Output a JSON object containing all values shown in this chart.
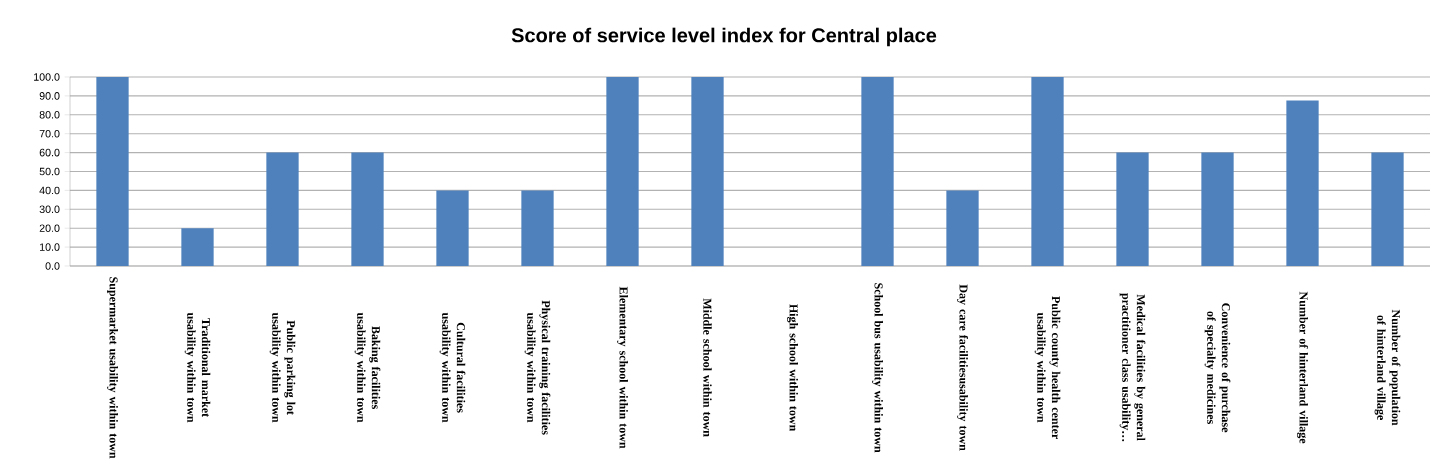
{
  "chart_data": {
    "type": "bar",
    "title": "Score of service level index for Central place",
    "categories": [
      "Supermarket usability within town",
      "Traditional market usability within town",
      "Public parking lot usability within town",
      "Baking facilities usability within town",
      "Cultural facilities usability within town",
      "Physical training facilities usability within town",
      "Elementary school within town",
      "Middle school within town",
      "High school within town",
      "School bus usability within town",
      "Day care facilitiesusability town",
      "Public county health center usability within town",
      "Medical facilities by general practitioner class usability…",
      "Convenience of purchase of specialty medicines",
      "Number of hinterland village",
      "Number of population of hinterland village"
    ],
    "values": [
      100,
      20,
      60,
      60,
      40,
      40,
      100,
      100,
      0,
      100,
      40,
      100,
      60,
      60,
      87.5,
      60
    ],
    "color": "#4f81bd",
    "ylim": [
      0,
      100
    ],
    "yticks": [
      {
        "value": 0,
        "label": "0.0"
      },
      {
        "value": 10,
        "label": "10.0"
      },
      {
        "value": 20,
        "label": "20.0"
      },
      {
        "value": 30,
        "label": "30.0"
      },
      {
        "value": 40,
        "label": "40.0"
      },
      {
        "value": 50,
        "label": "50.0"
      },
      {
        "value": 60,
        "label": "60.0"
      },
      {
        "value": 70,
        "label": "70.0"
      },
      {
        "value": 80,
        "label": "80.0"
      },
      {
        "value": 90,
        "label": "90.0"
      },
      {
        "value": 100,
        "label": "100.0"
      }
    ],
    "grid": "y"
  }
}
